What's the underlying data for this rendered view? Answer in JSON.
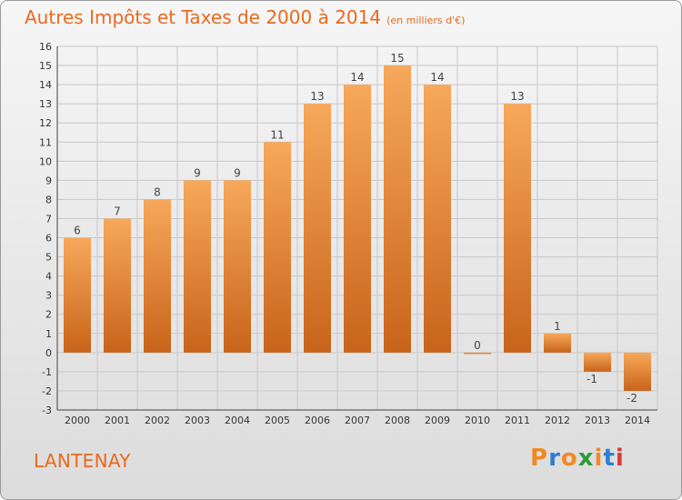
{
  "header": {
    "title": "Autres Impôts et Taxes de 2000 à 2014",
    "subtitle": "(en milliers d'€)"
  },
  "footer": {
    "commune": "LANTENAY",
    "brand": [
      "P",
      "r",
      "o",
      "x",
      "i",
      "t",
      "i"
    ],
    "brand_colors": [
      "#f08a24",
      "#2f7fd0",
      "#f08a24",
      "#2f9a3a",
      "#f08a24",
      "#2f7fd0",
      "#d93a3a"
    ]
  },
  "colors": {
    "bar_top": "#f7a85a",
    "bar_bottom": "#c8641a",
    "grid": "#c8c8c8",
    "accent": "#e96a20"
  },
  "chart_data": {
    "type": "bar",
    "categories": [
      "2000",
      "2001",
      "2002",
      "2003",
      "2004",
      "2005",
      "2006",
      "2007",
      "2008",
      "2009",
      "2010",
      "2011",
      "2012",
      "2013",
      "2014"
    ],
    "values": [
      6,
      7,
      8,
      9,
      9,
      11,
      13,
      14,
      15,
      14,
      0,
      13,
      1,
      -1,
      -2
    ],
    "data_labels": [
      "6",
      "7",
      "8",
      "9",
      "9",
      "11",
      "13",
      "14",
      "15",
      "14",
      "0",
      "13",
      "1",
      "-1",
      "-2"
    ],
    "ylim": [
      -3,
      16
    ],
    "yticks": [
      -3,
      -2,
      -1,
      0,
      1,
      2,
      3,
      4,
      5,
      6,
      7,
      8,
      9,
      10,
      11,
      12,
      13,
      14,
      15,
      16
    ],
    "title": "Autres Impôts et Taxes de 2000 à 2014",
    "xlabel": "",
    "ylabel": "",
    "grid": true
  }
}
